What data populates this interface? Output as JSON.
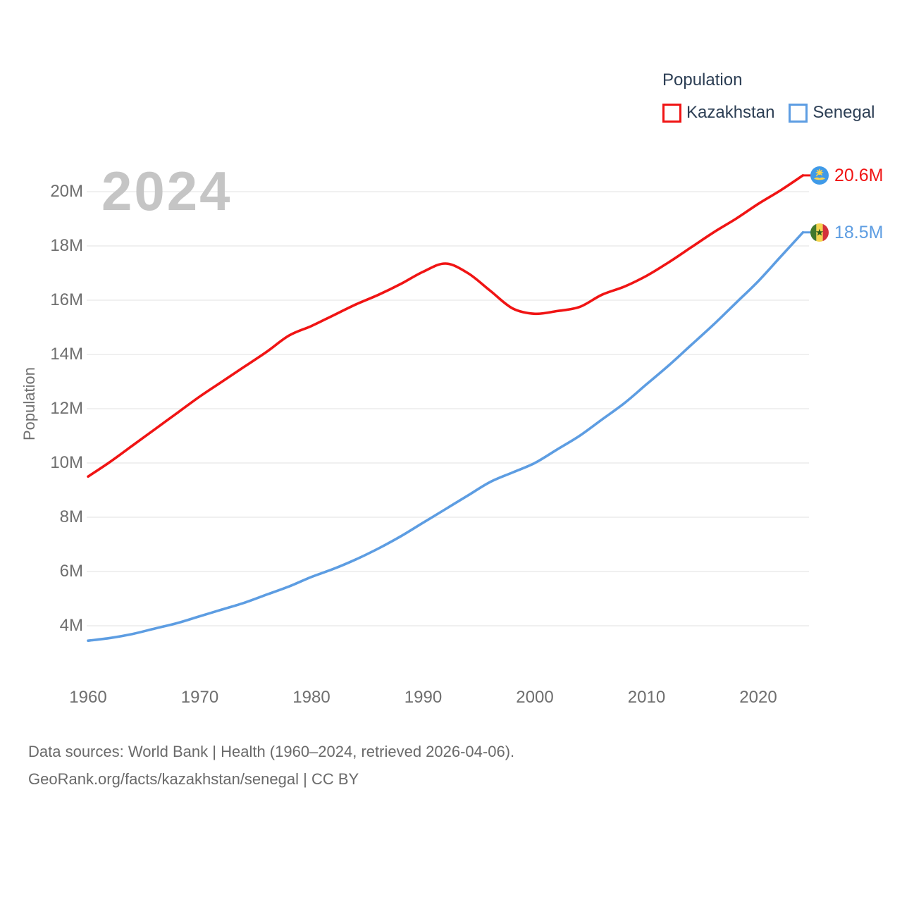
{
  "watermark_year": "2024",
  "legend": {
    "title": "Population",
    "items": [
      {
        "label": "Kazakhstan",
        "color": "#f01414"
      },
      {
        "label": "Senegal",
        "color": "#5d9de2"
      }
    ]
  },
  "y_axis": {
    "title": "Population",
    "tick_labels": [
      "4M",
      "6M",
      "8M",
      "10M",
      "12M",
      "14M",
      "16M",
      "18M",
      "20M"
    ],
    "tick_values": [
      4,
      6,
      8,
      10,
      12,
      14,
      16,
      18,
      20
    ]
  },
  "x_axis": {
    "tick_labels": [
      "1960",
      "1970",
      "1980",
      "1990",
      "2000",
      "2010",
      "2020"
    ],
    "tick_values": [
      1960,
      1970,
      1980,
      1990,
      2000,
      2010,
      2020
    ]
  },
  "end_labels": [
    {
      "series": "Kazakhstan",
      "value_label": "20.6M",
      "flag_icon": "kazakhstan-flag-icon"
    },
    {
      "series": "Senegal",
      "value_label": "18.5M",
      "flag_icon": "senegal-flag-icon"
    }
  ],
  "footer": {
    "line1": "Data sources: World Bank | Health (1960–2024, retrieved 2026-04-06).",
    "line2": "GeoRank.org/facts/kazakhstan/senegal | CC BY"
  },
  "chart_data": {
    "type": "line",
    "title": "Population",
    "xlabel": "",
    "ylabel": "Population",
    "xlim": [
      1960,
      2024
    ],
    "ylim_million": [
      3,
      21
    ],
    "grid": "horizontal",
    "legend_position": "top-right",
    "x": [
      1960,
      1962,
      1964,
      1966,
      1968,
      1970,
      1972,
      1974,
      1976,
      1978,
      1980,
      1982,
      1984,
      1986,
      1988,
      1990,
      1992,
      1994,
      1996,
      1998,
      2000,
      2002,
      2004,
      2006,
      2008,
      2010,
      2012,
      2014,
      2016,
      2018,
      2020,
      2022,
      2024
    ],
    "series": [
      {
        "name": "Kazakhstan",
        "color": "#f01414",
        "unit": "million",
        "final_value_label": "20.6M",
        "values": [
          9.5,
          10.05,
          10.65,
          11.25,
          11.85,
          12.45,
          13.0,
          13.55,
          14.1,
          14.7,
          15.05,
          15.45,
          15.85,
          16.2,
          16.6,
          17.05,
          17.35,
          17.0,
          16.35,
          15.7,
          15.5,
          15.6,
          15.75,
          16.2,
          16.5,
          16.9,
          17.4,
          17.95,
          18.5,
          19.0,
          19.55,
          20.05,
          20.6
        ]
      },
      {
        "name": "Senegal",
        "color": "#5d9de2",
        "unit": "million",
        "final_value_label": "18.5M",
        "values": [
          3.45,
          3.55,
          3.7,
          3.9,
          4.1,
          4.35,
          4.6,
          4.85,
          5.15,
          5.45,
          5.8,
          6.1,
          6.45,
          6.85,
          7.3,
          7.8,
          8.3,
          8.8,
          9.3,
          9.65,
          10.0,
          10.5,
          11.0,
          11.6,
          12.2,
          12.9,
          13.6,
          14.35,
          15.1,
          15.9,
          16.7,
          17.6,
          18.5
        ]
      }
    ]
  }
}
